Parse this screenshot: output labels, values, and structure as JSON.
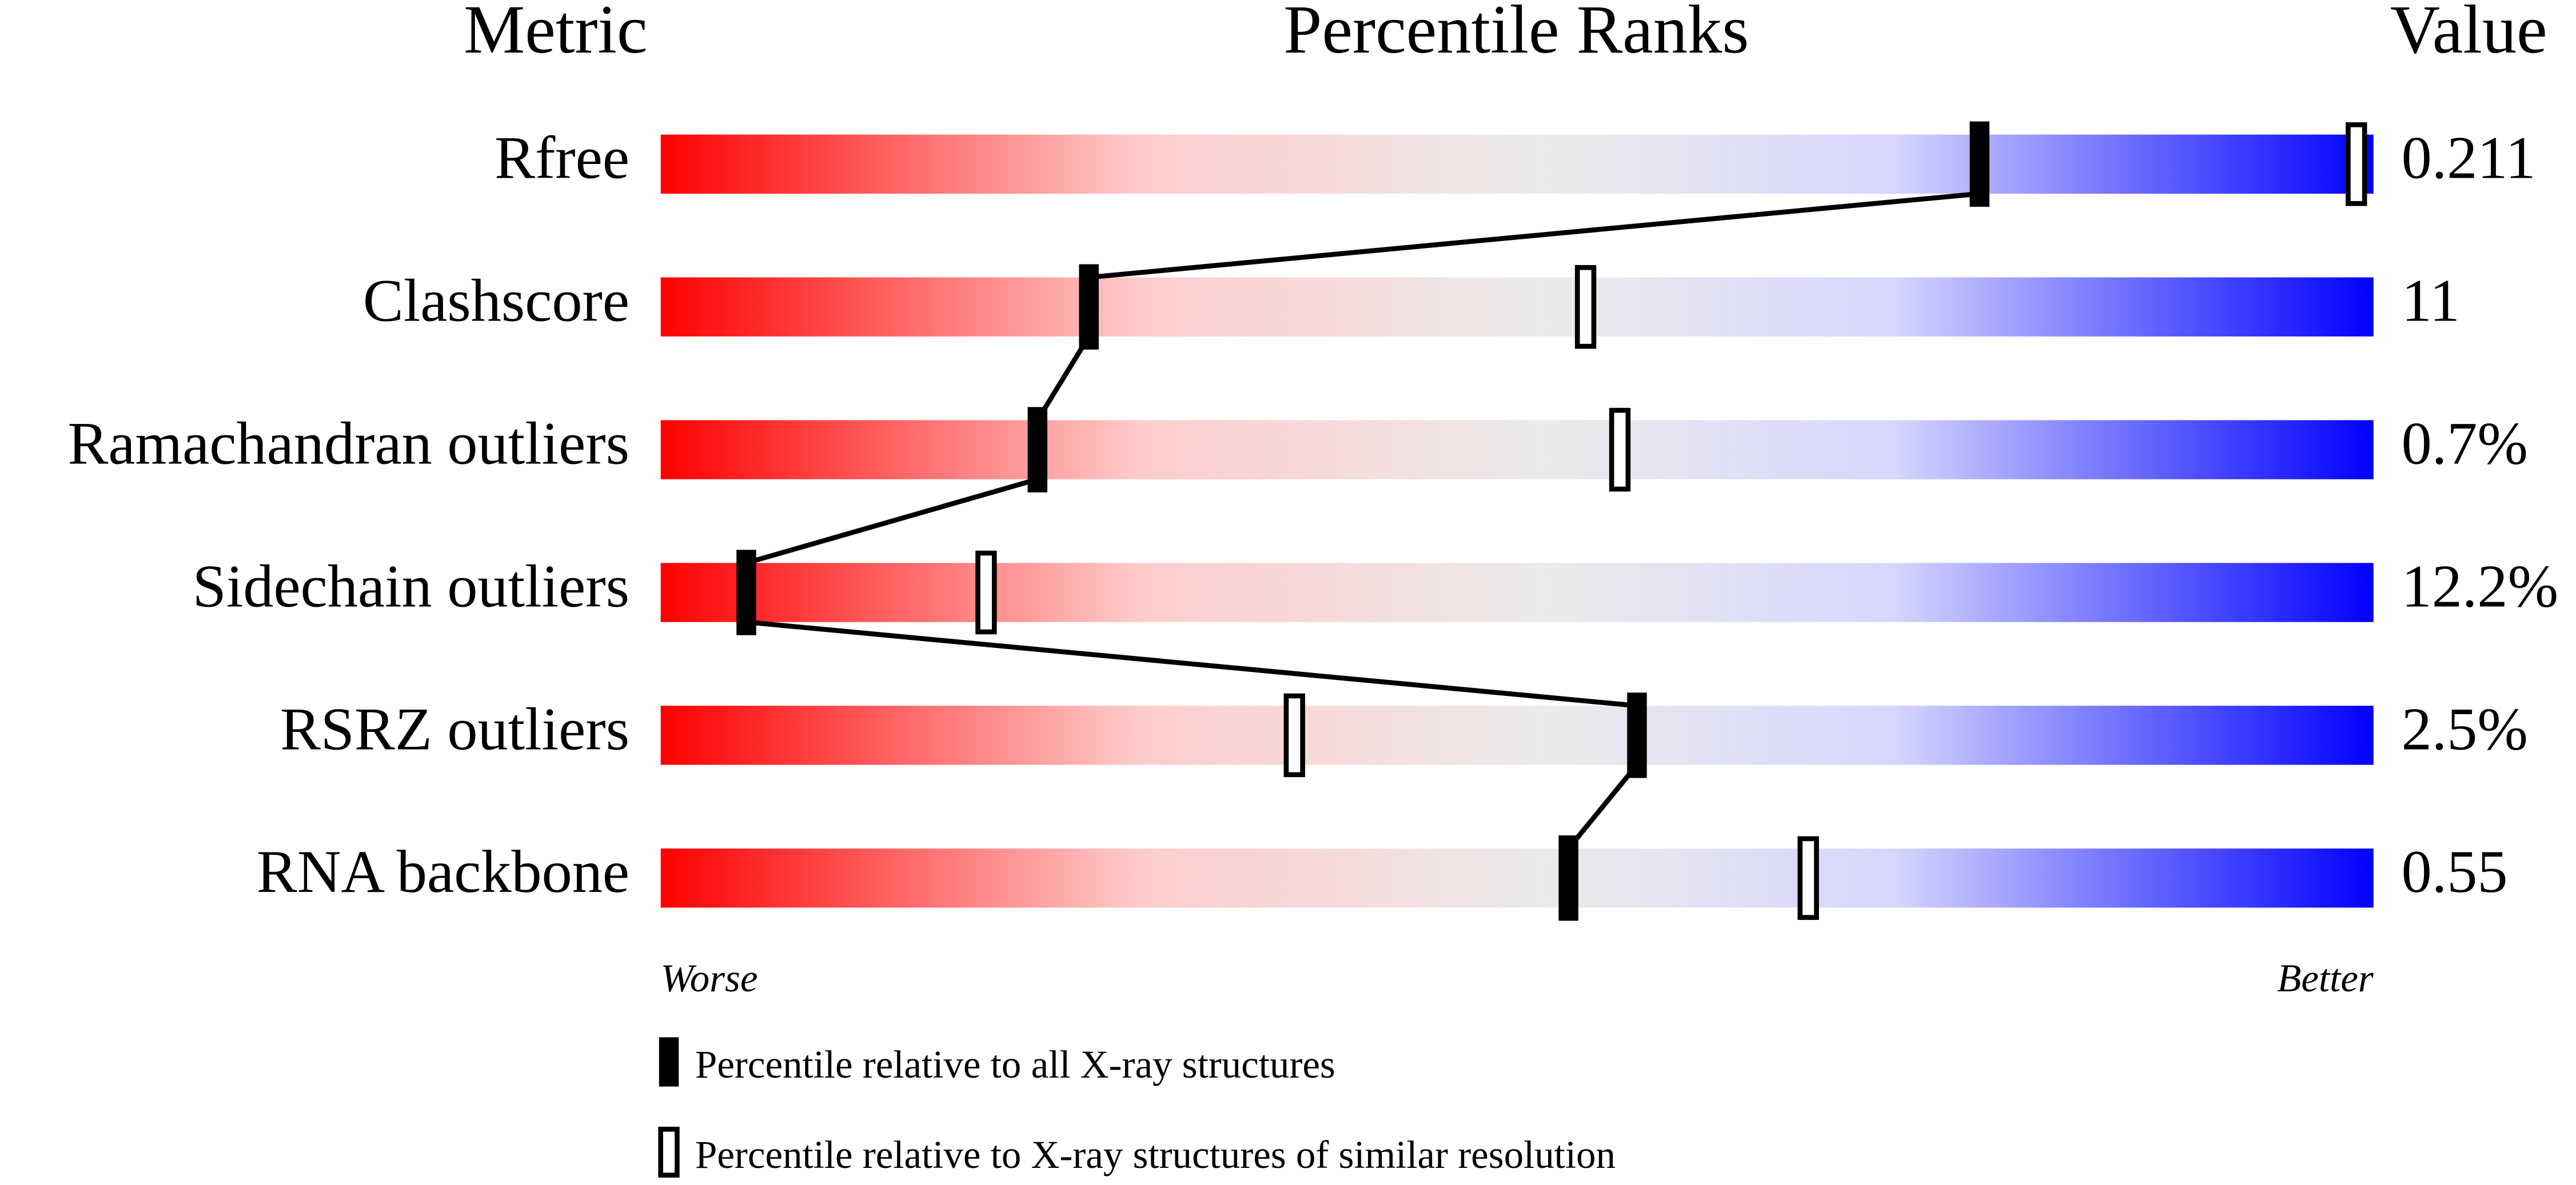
{
  "chart_data": {
    "type": "percentile",
    "headers": [
      "Metric",
      "Percentile Ranks",
      "Value"
    ],
    "categories": [
      "Rfree",
      "Clashscore",
      "Ramachandran outliers",
      "Sidechain outliers",
      "RSRZ outliers",
      "RNA backbone"
    ],
    "metric_values": [
      "0.211",
      "11",
      "0.7%",
      "12.2%",
      "2.5%",
      "0.55"
    ],
    "series": [
      {
        "name": "Percentile relative to all X-ray structures",
        "color": "#000000",
        "style": "filled",
        "values": [
          77,
          25,
          22,
          5,
          57,
          53
        ]
      },
      {
        "name": "Percentile relative to X-ray structures of similar resolution",
        "color": "#000000",
        "style": "outline",
        "values": [
          99,
          54,
          56,
          19,
          37,
          67
        ]
      }
    ],
    "xlim": [
      0,
      100
    ],
    "worse_label": "Worse",
    "better_label": "Better"
  }
}
